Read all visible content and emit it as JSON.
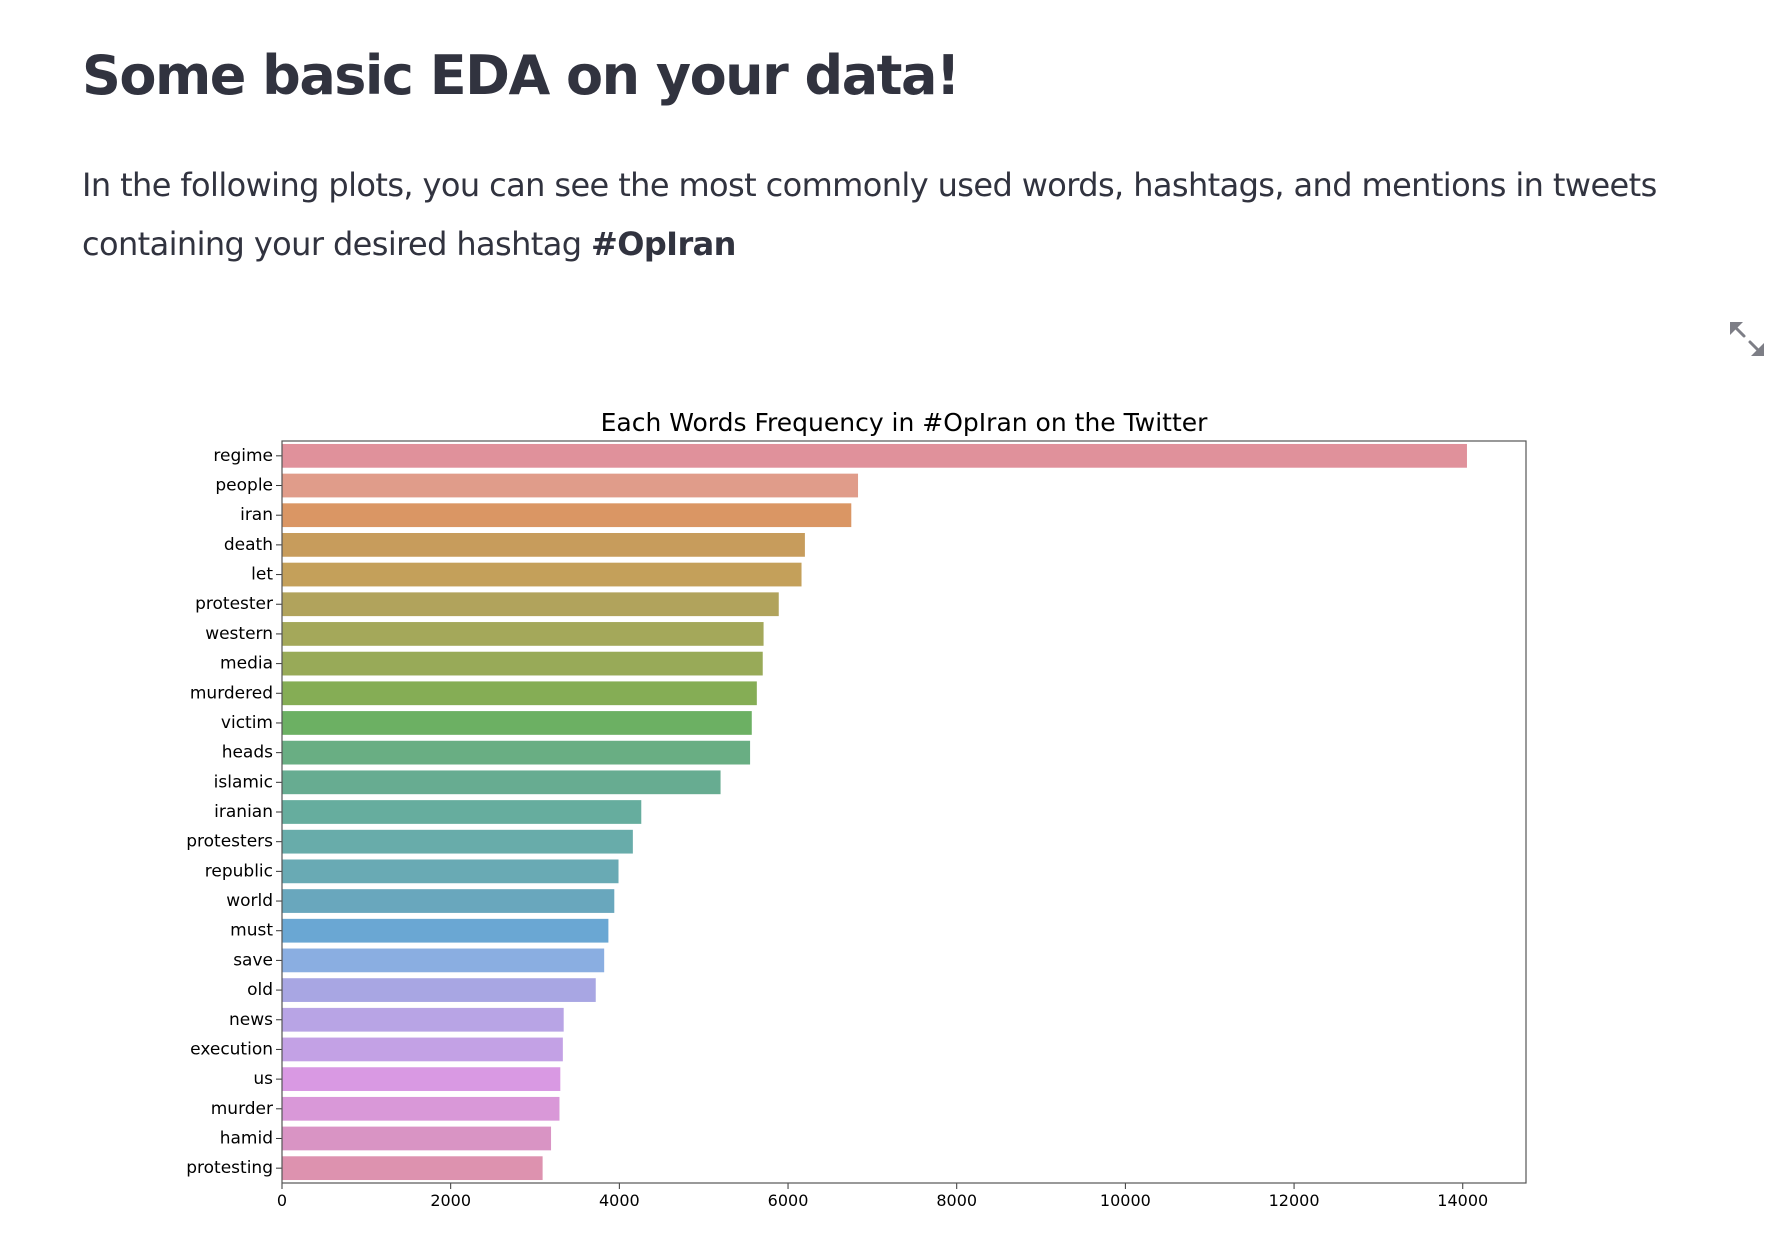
{
  "page": {
    "title": "Some basic EDA on your data!",
    "intro_text": "In the following plots, you can see the most commonly used words, hashtags, and mentions in tweets containing your desired hashtag",
    "hashtag": "#OpIran"
  },
  "fullscreen_icon": "expand-arrows-icon",
  "chart_data": {
    "type": "bar",
    "orientation": "horizontal",
    "title": "Each Words Frequency in #OpIran on the Twitter",
    "xlabel": "",
    "ylabel": "",
    "xlim": [
      0,
      14750
    ],
    "xticks": [
      0,
      2000,
      4000,
      6000,
      8000,
      10000,
      12000,
      14000
    ],
    "grid": false,
    "categories": [
      "regime",
      "people",
      "iran",
      "death",
      "let",
      "protester",
      "western",
      "media",
      "murdered",
      "victim",
      "heads",
      "islamic",
      "iranian",
      "protesters",
      "republic",
      "world",
      "must",
      "save",
      "old",
      "news",
      "execution",
      "us",
      "murder",
      "hamid",
      "protesting"
    ],
    "values": [
      14050,
      6830,
      6750,
      6200,
      6160,
      5890,
      5710,
      5700,
      5630,
      5570,
      5550,
      5200,
      4260,
      4160,
      3990,
      3940,
      3870,
      3820,
      3720,
      3340,
      3330,
      3300,
      3290,
      3190,
      3090
    ],
    "colors": [
      "#e0919b",
      "#e09c8a",
      "#da9664",
      "#c79c5c",
      "#c4a05a",
      "#b1a35c",
      "#a4a85a",
      "#98aa58",
      "#85ad55",
      "#6cb063",
      "#69ae83",
      "#67ac91",
      "#66ad9e",
      "#68acaa",
      "#69aab4",
      "#69a7bd",
      "#6aa7d3",
      "#8aaee1",
      "#a8a6e3",
      "#b8a4e5",
      "#c3a1e5",
      "#d999e3",
      "#d998d8",
      "#d994c4",
      "#dd92af"
    ]
  }
}
